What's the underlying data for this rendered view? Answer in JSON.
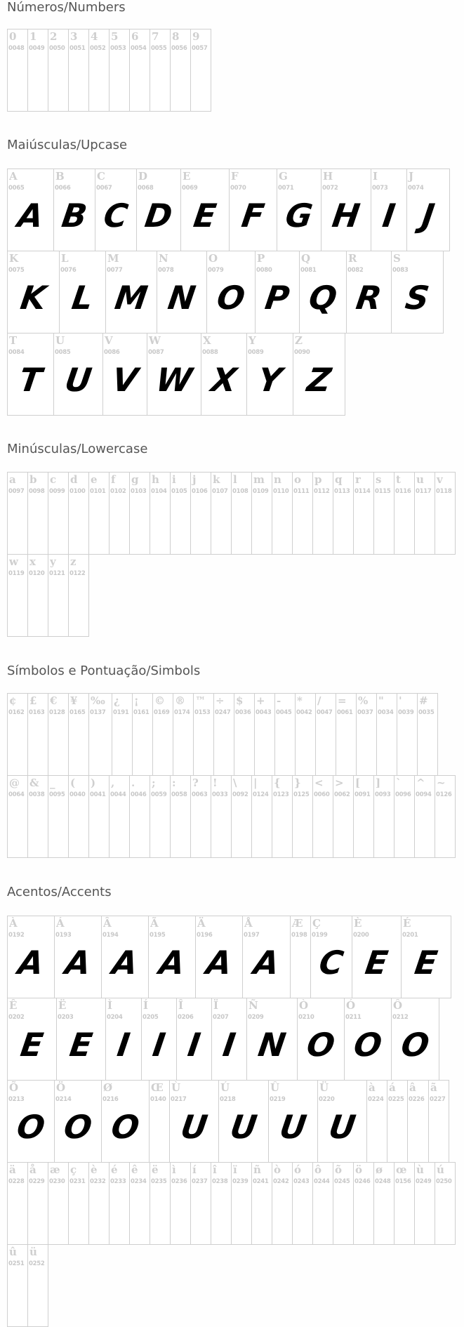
{
  "sections": [
    {
      "title": "Números/Numbers",
      "cells": [
        {
          "char": "0",
          "code": "0048"
        },
        {
          "char": "1",
          "code": "0049"
        },
        {
          "char": "2",
          "code": "0050"
        },
        {
          "char": "3",
          "code": "0051"
        },
        {
          "char": "4",
          "code": "0052"
        },
        {
          "char": "5",
          "code": "0053"
        },
        {
          "char": "6",
          "code": "0054"
        },
        {
          "char": "7",
          "code": "0055"
        },
        {
          "char": "8",
          "code": "0056"
        },
        {
          "char": "9",
          "code": "0057"
        }
      ]
    },
    {
      "title": "Maiúsculas/Upcase",
      "cells": [
        {
          "char": "A",
          "code": "0065",
          "glyph": "A"
        },
        {
          "char": "B",
          "code": "0066",
          "glyph": "B"
        },
        {
          "char": "C",
          "code": "0067",
          "glyph": "C"
        },
        {
          "char": "D",
          "code": "0068",
          "glyph": "D"
        },
        {
          "char": "E",
          "code": "0069",
          "glyph": "E"
        },
        {
          "char": "F",
          "code": "0070",
          "glyph": "F"
        },
        {
          "char": "G",
          "code": "0071",
          "glyph": "G"
        },
        {
          "char": "H",
          "code": "0072",
          "glyph": "H"
        },
        {
          "char": "I",
          "code": "0073",
          "glyph": "I"
        },
        {
          "char": "J",
          "code": "0074",
          "glyph": "J"
        },
        {
          "char": "K",
          "code": "0075",
          "glyph": "K"
        },
        {
          "char": "L",
          "code": "0076",
          "glyph": "L"
        },
        {
          "char": "M",
          "code": "0077",
          "glyph": "M"
        },
        {
          "char": "N",
          "code": "0078",
          "glyph": "N"
        },
        {
          "char": "O",
          "code": "0079",
          "glyph": "O"
        },
        {
          "char": "P",
          "code": "0080",
          "glyph": "P"
        },
        {
          "char": "Q",
          "code": "0081",
          "glyph": "Q"
        },
        {
          "char": "R",
          "code": "0082",
          "glyph": "R"
        },
        {
          "char": "S",
          "code": "0083",
          "glyph": "S"
        },
        {
          "char": "T",
          "code": "0084",
          "glyph": "T"
        },
        {
          "char": "U",
          "code": "0085",
          "glyph": "U"
        },
        {
          "char": "V",
          "code": "0086",
          "glyph": "V"
        },
        {
          "char": "W",
          "code": "0087",
          "glyph": "W"
        },
        {
          "char": "X",
          "code": "0088",
          "glyph": "X"
        },
        {
          "char": "Y",
          "code": "0089",
          "glyph": "Y"
        },
        {
          "char": "Z",
          "code": "0090",
          "glyph": "Z"
        }
      ]
    },
    {
      "title": "Minúsculas/Lowercase",
      "cells": [
        {
          "char": "a",
          "code": "0097"
        },
        {
          "char": "b",
          "code": "0098"
        },
        {
          "char": "c",
          "code": "0099"
        },
        {
          "char": "d",
          "code": "0100"
        },
        {
          "char": "e",
          "code": "0101"
        },
        {
          "char": "f",
          "code": "0102"
        },
        {
          "char": "g",
          "code": "0103"
        },
        {
          "char": "h",
          "code": "0104"
        },
        {
          "char": "i",
          "code": "0105"
        },
        {
          "char": "j",
          "code": "0106"
        },
        {
          "char": "k",
          "code": "0107"
        },
        {
          "char": "l",
          "code": "0108"
        },
        {
          "char": "m",
          "code": "0109"
        },
        {
          "char": "n",
          "code": "0110"
        },
        {
          "char": "o",
          "code": "0111"
        },
        {
          "char": "p",
          "code": "0112"
        },
        {
          "char": "q",
          "code": "0113"
        },
        {
          "char": "r",
          "code": "0114"
        },
        {
          "char": "s",
          "code": "0115"
        },
        {
          "char": "t",
          "code": "0116"
        },
        {
          "char": "u",
          "code": "0117"
        },
        {
          "char": "v",
          "code": "0118"
        },
        {
          "char": "w",
          "code": "0119"
        },
        {
          "char": "x",
          "code": "0120"
        },
        {
          "char": "y",
          "code": "0121"
        },
        {
          "char": "z",
          "code": "0122"
        }
      ]
    },
    {
      "title": "Símbolos e Pontuação/Simbols",
      "cells": [
        {
          "char": "¢",
          "code": "0162"
        },
        {
          "char": "£",
          "code": "0163"
        },
        {
          "char": "€",
          "code": "0128"
        },
        {
          "char": "¥",
          "code": "0165"
        },
        {
          "char": "‰",
          "code": "0137"
        },
        {
          "char": "¿",
          "code": "0191"
        },
        {
          "char": "¡",
          "code": "0161"
        },
        {
          "char": "©",
          "code": "0169"
        },
        {
          "char": "®",
          "code": "0174"
        },
        {
          "char": "™",
          "code": "0153"
        },
        {
          "char": "÷",
          "code": "0247"
        },
        {
          "char": "$",
          "code": "0036"
        },
        {
          "char": "+",
          "code": "0043"
        },
        {
          "char": "-",
          "code": "0045"
        },
        {
          "char": "*",
          "code": "0042"
        },
        {
          "char": "/",
          "code": "0047"
        },
        {
          "char": "=",
          "code": "0061"
        },
        {
          "char": "%",
          "code": "0037"
        },
        {
          "char": "\"",
          "code": "0034"
        },
        {
          "char": "'",
          "code": "0039"
        },
        {
          "char": "#",
          "code": "0035"
        },
        {
          "char": "@",
          "code": "0064"
        },
        {
          "char": "&",
          "code": "0038"
        },
        {
          "char": "_",
          "code": "0095"
        },
        {
          "char": "(",
          "code": "0040"
        },
        {
          "char": ")",
          "code": "0041"
        },
        {
          "char": ",",
          "code": "0044"
        },
        {
          "char": ".",
          "code": "0046"
        },
        {
          "char": ";",
          "code": "0059"
        },
        {
          "char": ":",
          "code": "0058"
        },
        {
          "char": "?",
          "code": "0063"
        },
        {
          "char": "!",
          "code": "0033"
        },
        {
          "char": "\\",
          "code": "0092"
        },
        {
          "char": "|",
          "code": "0124"
        },
        {
          "char": "{",
          "code": "0123"
        },
        {
          "char": "}",
          "code": "0125"
        },
        {
          "char": "<",
          "code": "0060"
        },
        {
          "char": ">",
          "code": "0062"
        },
        {
          "char": "[",
          "code": "0091"
        },
        {
          "char": "]",
          "code": "0093"
        },
        {
          "char": "`",
          "code": "0096"
        },
        {
          "char": "^",
          "code": "0094"
        },
        {
          "char": "~",
          "code": "0126"
        }
      ]
    },
    {
      "title": "Acentos/Accents",
      "cells": [
        {
          "char": "À",
          "code": "0192",
          "glyph": "A"
        },
        {
          "char": "Á",
          "code": "0193",
          "glyph": "A"
        },
        {
          "char": "Â",
          "code": "0194",
          "glyph": "A"
        },
        {
          "char": "Ã",
          "code": "0195",
          "glyph": "A"
        },
        {
          "char": "Ä",
          "code": "0196",
          "glyph": "A"
        },
        {
          "char": "Å",
          "code": "0197",
          "glyph": "A"
        },
        {
          "char": "Æ",
          "code": "0198"
        },
        {
          "char": "Ç",
          "code": "0199",
          "glyph": "C"
        },
        {
          "char": "È",
          "code": "0200",
          "glyph": "E"
        },
        {
          "char": "É",
          "code": "0201",
          "glyph": "E"
        },
        {
          "char": "Ê",
          "code": "0202",
          "glyph": "E"
        },
        {
          "char": "Ë",
          "code": "0203",
          "glyph": "E"
        },
        {
          "char": "Ì",
          "code": "0204",
          "glyph": "I"
        },
        {
          "char": "Í",
          "code": "0205",
          "glyph": "I"
        },
        {
          "char": "Î",
          "code": "0206",
          "glyph": "I"
        },
        {
          "char": "Ï",
          "code": "0207",
          "glyph": "I"
        },
        {
          "char": "Ñ",
          "code": "0209",
          "glyph": "N"
        },
        {
          "char": "Ò",
          "code": "0210",
          "glyph": "O"
        },
        {
          "char": "Ó",
          "code": "0211",
          "glyph": "O"
        },
        {
          "char": "Ô",
          "code": "0212",
          "glyph": "O"
        },
        {
          "char": "Õ",
          "code": "0213",
          "glyph": "O"
        },
        {
          "char": "Ö",
          "code": "0214",
          "glyph": "O"
        },
        {
          "char": "Ø",
          "code": "0216",
          "glyph": "O"
        },
        {
          "char": "Œ",
          "code": "0140"
        },
        {
          "char": "Ù",
          "code": "0217",
          "glyph": "U"
        },
        {
          "char": "Ú",
          "code": "0218",
          "glyph": "U"
        },
        {
          "char": "Û",
          "code": "0219",
          "glyph": "U"
        },
        {
          "char": "Ü",
          "code": "0220",
          "glyph": "U"
        },
        {
          "char": "à",
          "code": "0224"
        },
        {
          "char": "á",
          "code": "0225"
        },
        {
          "char": "â",
          "code": "0226"
        },
        {
          "char": "ã",
          "code": "0227"
        },
        {
          "char": "ä",
          "code": "0228"
        },
        {
          "char": "å",
          "code": "0229"
        },
        {
          "char": "æ",
          "code": "0230"
        },
        {
          "char": "ç",
          "code": "0231"
        },
        {
          "char": "è",
          "code": "0232"
        },
        {
          "char": "é",
          "code": "0233"
        },
        {
          "char": "ê",
          "code": "0234"
        },
        {
          "char": "ë",
          "code": "0235"
        },
        {
          "char": "ì",
          "code": "0236"
        },
        {
          "char": "í",
          "code": "0237"
        },
        {
          "char": "î",
          "code": "0238"
        },
        {
          "char": "ï",
          "code": "0239"
        },
        {
          "char": "ñ",
          "code": "0241"
        },
        {
          "char": "ò",
          "code": "0242"
        },
        {
          "char": "ó",
          "code": "0243"
        },
        {
          "char": "ô",
          "code": "0244"
        },
        {
          "char": "õ",
          "code": "0245"
        },
        {
          "char": "ö",
          "code": "0246"
        },
        {
          "char": "ø",
          "code": "0248"
        },
        {
          "char": "œ",
          "code": "0156"
        },
        {
          "char": "ù",
          "code": "0249"
        },
        {
          "char": "ú",
          "code": "0250"
        },
        {
          "char": "û",
          "code": "0251"
        },
        {
          "char": "ü",
          "code": "0252"
        }
      ]
    }
  ]
}
